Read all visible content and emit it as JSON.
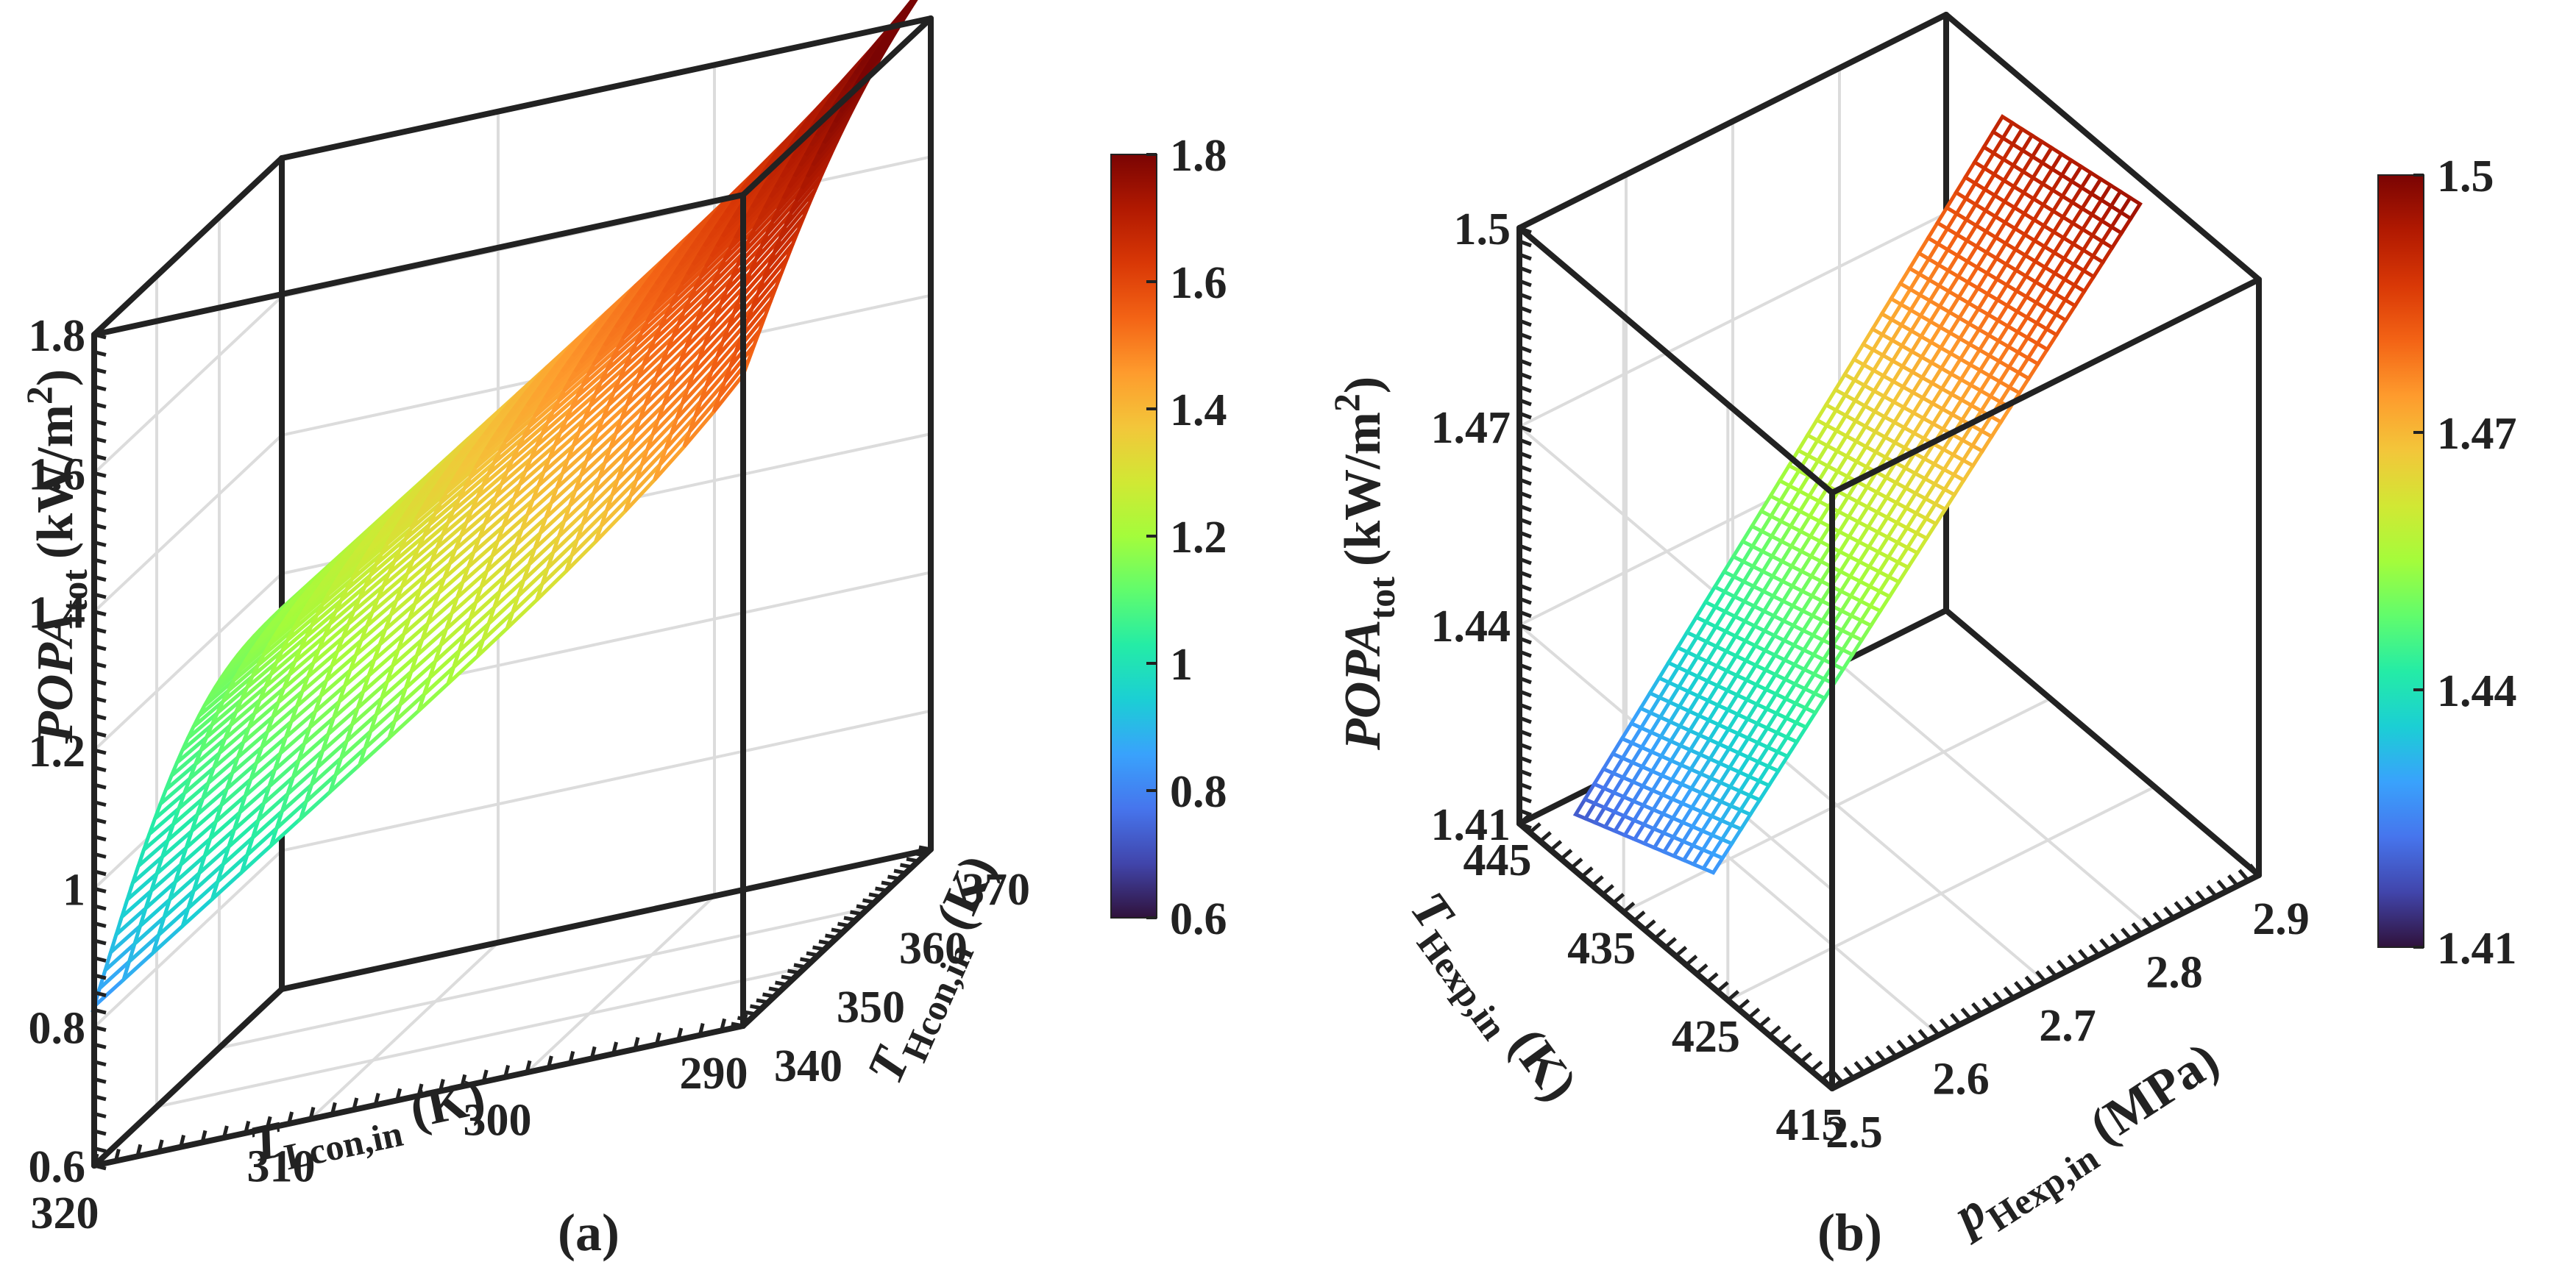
{
  "colors": {
    "box": "#222222",
    "grid": "#dcdcdc",
    "bg": "#ffffff"
  },
  "colormap_stops": [
    "#30123b",
    "#4145ab",
    "#4675ed",
    "#39a2fc",
    "#1bcfd4",
    "#24eca6",
    "#61fc6c",
    "#a4fc3b",
    "#d1e834",
    "#f3c63a",
    "#fe9b2d",
    "#f36315",
    "#d93806",
    "#b11901",
    "#7a0403"
  ],
  "chart_data": [
    {
      "type": "surface",
      "panel_label": "(a)",
      "x": {
        "name": "T",
        "subscript": "Lcon,in",
        "unit": "(K)",
        "range": [
          290,
          320
        ],
        "ticks": [
          "320",
          "310",
          "300",
          "290"
        ]
      },
      "y": {
        "name": "T",
        "subscript": "Hcon,in",
        "unit": "(K)",
        "range": [
          340,
          370
        ],
        "ticks": [
          "340",
          "350",
          "360",
          "370"
        ]
      },
      "z": {
        "name": "POPA",
        "subscript": "tot",
        "unit": "(kW/m",
        "unit_sup": "2",
        "unit_close": ")",
        "range": [
          0.6,
          1.8
        ],
        "ticks": [
          "0.6",
          "0.8",
          "1",
          "1.2",
          "1.4",
          "1.6",
          "1.8"
        ]
      },
      "colorbar": {
        "range": [
          0.6,
          1.8
        ],
        "ticks": [
          "0.6",
          "0.8",
          "1",
          "1.2",
          "1.4",
          "1.6",
          "1.8"
        ]
      },
      "surface_samples": [
        {
          "T_Lcon_in": 320,
          "T_Hcon_in": 340,
          "POPA_tot": 0.83
        },
        {
          "T_Lcon_in": 320,
          "T_Hcon_in": 370,
          "POPA_tot": 1.15
        },
        {
          "T_Lcon_in": 290,
          "T_Hcon_in": 340,
          "POPA_tot": 1.48
        },
        {
          "T_Lcon_in": 290,
          "T_Hcon_in": 370,
          "POPA_tot": 1.8
        }
      ]
    },
    {
      "type": "surface",
      "panel_label": "(b)",
      "x": {
        "name": "p",
        "subscript": "Hexp,in",
        "unit": "(MPa)",
        "range": [
          2.5,
          2.9
        ],
        "ticks": [
          "2.5",
          "2.6",
          "2.7",
          "2.8",
          "2.9"
        ]
      },
      "y": {
        "name": "T",
        "subscript": "Hexp,in",
        "unit": "(K)",
        "range": [
          415,
          445
        ],
        "ticks": [
          "445",
          "435",
          "425",
          "415"
        ]
      },
      "z": {
        "name": "POPA",
        "subscript": "tot",
        "unit": "(kW/m",
        "unit_sup": "2",
        "unit_close": ")",
        "range": [
          1.41,
          1.5
        ],
        "ticks": [
          "1.41",
          "1.44",
          "1.47",
          "1.5"
        ]
      },
      "colorbar": {
        "range": [
          1.41,
          1.5
        ],
        "ticks": [
          "1.41",
          "1.44",
          "1.47",
          "1.5"
        ]
      },
      "surface_samples": [
        {
          "p_Hexp_in": 2.5,
          "T_Hexp_in": 445,
          "POPA_tot": 1.415
        },
        {
          "p_Hexp_in": 2.5,
          "T_Hexp_in": 415,
          "POPA_tot": 1.435
        },
        {
          "p_Hexp_in": 2.9,
          "T_Hexp_in": 445,
          "POPA_tot": 1.49
        },
        {
          "p_Hexp_in": 2.9,
          "T_Hexp_in": 415,
          "POPA_tot": 1.5
        }
      ]
    }
  ]
}
